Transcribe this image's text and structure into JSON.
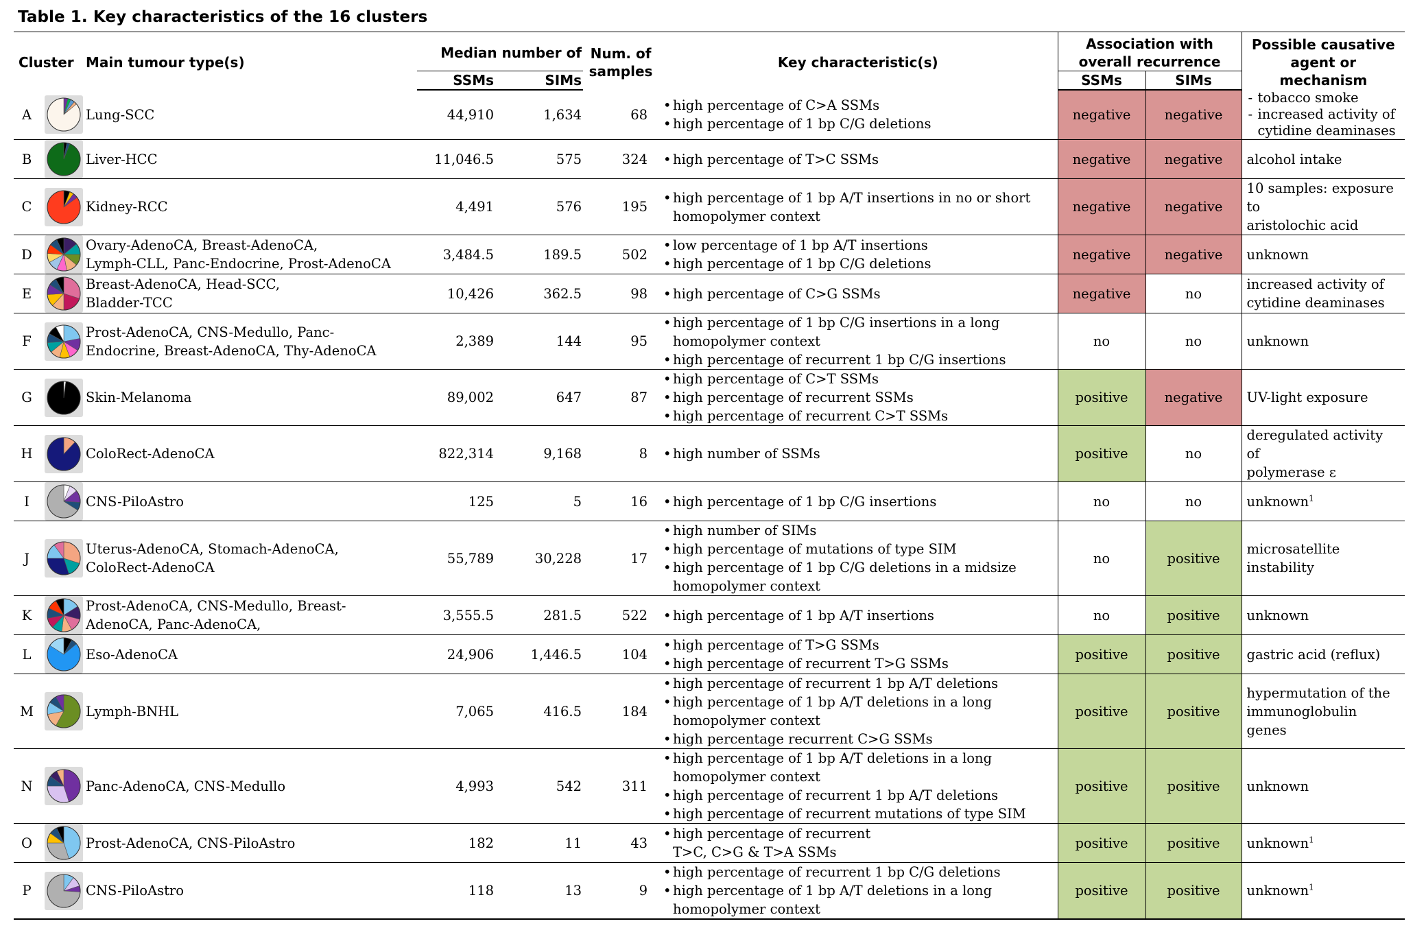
{
  "caption": "Table 1. Key characteristics of the 16 clusters",
  "headers": {
    "cluster": "Cluster",
    "tumour": "Main tumour type(s)",
    "median": "Median number of",
    "ssms": "SSMs",
    "sims": "SIMs",
    "samples_1": "Num. of",
    "samples_2": "samples",
    "key": "Key characteristic(s)",
    "assoc_1": "Association with",
    "assoc_2": "overall recurrence",
    "assoc_ssms": "SSMs",
    "assoc_sims": "SIMs",
    "agent_1": "Possible causative",
    "agent_2": "agent or mechanism"
  },
  "colors": {
    "negative_fill": "#d99594",
    "positive_fill": "#c4d79b",
    "pie_background": "#dcdcdc"
  },
  "rows": [
    {
      "label": "A",
      "tumour": [
        "Lung-SCC"
      ],
      "ssms": "44,910",
      "sims": "1,634",
      "samples": "68",
      "chars": [
        "high percentage of C>A SSMs",
        "high percentage of 1 bp C/G deletions"
      ],
      "assoc_ssms": "negative",
      "assoc_sims": "negative",
      "agent_dashes": [
        "tobacco smoke",
        "increased activity of cytidine deaminases"
      ],
      "pie": [
        {
          "v": 0.04,
          "c": "#7030a0"
        },
        {
          "v": 0.03,
          "c": "#00b050"
        },
        {
          "v": 0.04,
          "c": "#5b9bd5"
        },
        {
          "v": 0.03,
          "c": "#f4b183"
        },
        {
          "v": 0.86,
          "c": "#fcf5ec"
        }
      ]
    },
    {
      "label": "B",
      "tumour": [
        "Liver-HCC"
      ],
      "ssms": "11,046.5",
      "sims": "575",
      "samples": "324",
      "chars": [
        "high percentage of T>C SSMs"
      ],
      "assoc_ssms": "negative",
      "assoc_sims": "negative",
      "agent_lines": [
        "alcohol intake"
      ],
      "pie": [
        {
          "v": 0.03,
          "c": "#000000"
        },
        {
          "v": 0.03,
          "c": "#1f4e79"
        },
        {
          "v": 0.94,
          "c": "#0e6b19"
        }
      ]
    },
    {
      "label": "C",
      "tumour": [
        "Kidney-RCC"
      ],
      "ssms": "4,491",
      "sims": "576",
      "samples": "195",
      "chars": [
        "high percentage of 1 bp A/T insertions in no or short homopolymer context"
      ],
      "assoc_ssms": "negative",
      "assoc_sims": "negative",
      "agent_lines": [
        "10 samples: exposure to",
        "aristolochic acid"
      ],
      "pie": [
        {
          "v": 0.06,
          "c": "#000000"
        },
        {
          "v": 0.04,
          "c": "#ffc000"
        },
        {
          "v": 0.05,
          "c": "#7030a0"
        },
        {
          "v": 0.85,
          "c": "#ff3c1e"
        }
      ]
    },
    {
      "label": "D",
      "tumour": [
        "Ovary-AdenoCA, Breast-AdenoCA,",
        "Lymph-CLL, Panc-Endocrine, Prost-AdenoCA"
      ],
      "ssms": "3,484.5",
      "sims": "189.5",
      "samples": "502",
      "chars": [
        "low percentage of 1 bp A/T insertions",
        "high percentage of 1 bp C/G deletions"
      ],
      "assoc_ssms": "negative",
      "assoc_sims": "negative",
      "agent_lines": [
        "unknown"
      ],
      "pie": [
        {
          "v": 0.14,
          "c": "#3a1e64"
        },
        {
          "v": 0.11,
          "c": "#00a0a0"
        },
        {
          "v": 0.11,
          "c": "#6b8e23"
        },
        {
          "v": 0.11,
          "c": "#f4b183"
        },
        {
          "v": 0.1,
          "c": "#ff66cc"
        },
        {
          "v": 0.1,
          "c": "#9fc5e8"
        },
        {
          "v": 0.09,
          "c": "#ffd966"
        },
        {
          "v": 0.09,
          "c": "#ff3300"
        },
        {
          "v": 0.08,
          "c": "#1f4e79"
        },
        {
          "v": 0.07,
          "c": "#000000"
        }
      ]
    },
    {
      "label": "E",
      "tumour": [
        "Breast-AdenoCA, Head-SCC,",
        "Bladder-TCC"
      ],
      "ssms": "10,426",
      "sims": "362.5",
      "samples": "98",
      "chars": [
        "high percentage of C>G SSMs"
      ],
      "assoc_ssms": "negative",
      "assoc_sims": "no",
      "agent_lines": [
        "increased activity of",
        "cytidine deaminases"
      ],
      "pie": [
        {
          "v": 0.3,
          "c": "#e06e9b"
        },
        {
          "v": 0.2,
          "c": "#c2185b"
        },
        {
          "v": 0.12,
          "c": "#f4b183"
        },
        {
          "v": 0.12,
          "c": "#ffc000"
        },
        {
          "v": 0.1,
          "c": "#7030a0"
        },
        {
          "v": 0.08,
          "c": "#1f4e79"
        },
        {
          "v": 0.08,
          "c": "#000000"
        }
      ]
    },
    {
      "label": "F",
      "tumour": [
        "Prost-AdenoCA, CNS-Medullo, Panc-",
        "Endocrine, Breast-AdenoCA, Thy-AdenoCA"
      ],
      "ssms": "2,389",
      "sims": "144",
      "samples": "95",
      "chars": [
        "high percentage of 1 bp C/G insertions in a long homopolymer context",
        "high percentage of recurrent 1 bp C/G insertions"
      ],
      "assoc_ssms": "no",
      "assoc_sims": "no",
      "agent_lines": [
        "unknown"
      ],
      "pie": [
        {
          "v": 0.22,
          "c": "#7fc7f0"
        },
        {
          "v": 0.12,
          "c": "#7030a0"
        },
        {
          "v": 0.1,
          "c": "#ff66cc"
        },
        {
          "v": 0.1,
          "c": "#ffc000"
        },
        {
          "v": 0.1,
          "c": "#f4b183"
        },
        {
          "v": 0.1,
          "c": "#00a0a0"
        },
        {
          "v": 0.09,
          "c": "#1f4e79"
        },
        {
          "v": 0.09,
          "c": "#000000"
        },
        {
          "v": 0.08,
          "c": "#ffffff"
        }
      ]
    },
    {
      "label": "G",
      "tumour": [
        "Skin-Melanoma"
      ],
      "ssms": "89,002",
      "sims": "647",
      "samples": "87",
      "chars": [
        "high percentage of C>T SSMs",
        "high percentage of recurrent SSMs",
        "high percentage of recurrent C>T SSMs"
      ],
      "assoc_ssms": "positive",
      "assoc_sims": "negative",
      "agent_lines": [
        "UV-light exposure"
      ],
      "pie": [
        {
          "v": 0.02,
          "c": "#ffffff"
        },
        {
          "v": 0.98,
          "c": "#000000"
        }
      ]
    },
    {
      "label": "H",
      "tumour": [
        "ColoRect-AdenoCA"
      ],
      "ssms": "822,314",
      "sims": "9,168",
      "samples": "8",
      "chars": [
        "high number of SSMs"
      ],
      "assoc_ssms": "positive",
      "assoc_sims": "no",
      "agent_lines": [
        "deregulated activity of",
        "polymerase ε"
      ],
      "pie": [
        {
          "v": 0.12,
          "c": "#f4a582"
        },
        {
          "v": 0.88,
          "c": "#15197a"
        }
      ]
    },
    {
      "label": "I",
      "tumour": [
        "CNS-PiloAstro"
      ],
      "ssms": "125",
      "sims": "5",
      "samples": "16",
      "chars": [
        "high percentage of 1 bp C/G insertions"
      ],
      "assoc_ssms": "no",
      "assoc_sims": "no",
      "agent_lines": [
        "unknown"
      ],
      "agent_sup": "1",
      "pie": [
        {
          "v": 0.06,
          "c": "#ffffff"
        },
        {
          "v": 0.08,
          "c": "#e6d6f5"
        },
        {
          "v": 0.12,
          "c": "#7030a0"
        },
        {
          "v": 0.08,
          "c": "#1f4e79"
        },
        {
          "v": 0.66,
          "c": "#b0b0b0"
        }
      ]
    },
    {
      "label": "J",
      "tumour": [
        "Uterus-AdenoCA, Stomach-AdenoCA,",
        "ColoRect-AdenoCA"
      ],
      "ssms": "55,789",
      "sims": "30,228",
      "samples": "17",
      "chars": [
        "high number of SIMs",
        "high percentage of mutations of type SIM",
        "high percentage of 1 bp C/G deletions in a midsize homopolymer context"
      ],
      "assoc_ssms": "no",
      "assoc_sims": "positive",
      "agent_lines": [
        "microsatellite instability"
      ],
      "pie": [
        {
          "v": 0.3,
          "c": "#f4a582"
        },
        {
          "v": 0.15,
          "c": "#00a0a0"
        },
        {
          "v": 0.3,
          "c": "#15197a"
        },
        {
          "v": 0.15,
          "c": "#7fc7f0"
        },
        {
          "v": 0.1,
          "c": "#e06e9b"
        }
      ]
    },
    {
      "label": "K",
      "tumour": [
        "Prost-AdenoCA, CNS-Medullo, Breast-",
        "AdenoCA, Panc-AdenoCA,"
      ],
      "ssms": "3,555.5",
      "sims": "281.5",
      "samples": "522",
      "chars": [
        "high percentage of 1 bp A/T insertions"
      ],
      "assoc_ssms": "no",
      "assoc_sims": "positive",
      "agent_lines": [
        "unknown"
      ],
      "pie": [
        {
          "v": 0.16,
          "c": "#7fc7f0"
        },
        {
          "v": 0.13,
          "c": "#3a1e64"
        },
        {
          "v": 0.13,
          "c": "#e06e9b"
        },
        {
          "v": 0.1,
          "c": "#f4b183"
        },
        {
          "v": 0.1,
          "c": "#00a0a0"
        },
        {
          "v": 0.1,
          "c": "#c2185b"
        },
        {
          "v": 0.1,
          "c": "#1f4e79"
        },
        {
          "v": 0.1,
          "c": "#ff3300"
        },
        {
          "v": 0.08,
          "c": "#000000"
        }
      ]
    },
    {
      "label": "L",
      "tumour": [
        "Eso-AdenoCA"
      ],
      "ssms": "24,906",
      "sims": "1,446.5",
      "samples": "104",
      "chars": [
        "high percentage of T>G SSMs",
        "high percentage of recurrent T>G SSMs"
      ],
      "assoc_ssms": "positive",
      "assoc_sims": "positive",
      "agent_lines": [
        "gastric acid (reflux)"
      ],
      "pie": [
        {
          "v": 0.08,
          "c": "#000000"
        },
        {
          "v": 0.06,
          "c": "#1f4e79"
        },
        {
          "v": 0.7,
          "c": "#2196f3"
        },
        {
          "v": 0.16,
          "c": "#9fd8f5"
        }
      ]
    },
    {
      "label": "M",
      "tumour": [
        "Lymph-BNHL"
      ],
      "ssms": "7,065",
      "sims": "416.5",
      "samples": "184",
      "chars": [
        "high percentage of recurrent 1 bp A/T deletions",
        "high percentage of 1 bp A/T deletions in a long homopolymer context",
        "high percentage recurrent C>G SSMs"
      ],
      "assoc_ssms": "positive",
      "assoc_sims": "positive",
      "agent_lines": [
        "hypermutation of the",
        "immunoglobulin genes"
      ],
      "pie": [
        {
          "v": 0.58,
          "c": "#6b8e23"
        },
        {
          "v": 0.14,
          "c": "#f4b183"
        },
        {
          "v": 0.12,
          "c": "#7fc7f0"
        },
        {
          "v": 0.08,
          "c": "#1f4e79"
        },
        {
          "v": 0.08,
          "c": "#7030a0"
        }
      ]
    },
    {
      "label": "N",
      "tumour": [
        "Panc-AdenoCA, CNS-Medullo"
      ],
      "ssms": "4,993",
      "sims": "542",
      "samples": "311",
      "chars": [
        "high percentage of 1 bp A/T deletions in a long homopolymer context",
        "high percentage of recurrent 1 bp A/T deletions",
        "high percentage of recurrent mutations of type SIM"
      ],
      "assoc_ssms": "positive",
      "assoc_sims": "positive",
      "agent_lines": [
        "unknown"
      ],
      "pie": [
        {
          "v": 0.45,
          "c": "#7030a0"
        },
        {
          "v": 0.3,
          "c": "#d9c2f0"
        },
        {
          "v": 0.1,
          "c": "#1f4e79"
        },
        {
          "v": 0.08,
          "c": "#3a1e64"
        },
        {
          "v": 0.07,
          "c": "#f4b183"
        }
      ]
    },
    {
      "label": "O",
      "tumour": [
        "Prost-AdenoCA, CNS-PiloAstro"
      ],
      "ssms": "182",
      "sims": "11",
      "samples": "43",
      "chars": [
        "high percentage of recurrent",
        "T>C, C>G & T>A SSMs"
      ],
      "chars_joined": true,
      "assoc_ssms": "positive",
      "assoc_sims": "positive",
      "agent_lines": [
        "unknown"
      ],
      "agent_sup": "1",
      "pie": [
        {
          "v": 0.45,
          "c": "#7fc7f0"
        },
        {
          "v": 0.3,
          "c": "#b0b0b0"
        },
        {
          "v": 0.1,
          "c": "#ffc000"
        },
        {
          "v": 0.08,
          "c": "#1f4e79"
        },
        {
          "v": 0.07,
          "c": "#000000"
        }
      ]
    },
    {
      "label": "P",
      "tumour": [
        "CNS-PiloAstro"
      ],
      "ssms": "118",
      "sims": "13",
      "samples": "9",
      "chars": [
        "high percentage of recurrent 1 bp C/G deletions",
        "high percentage of 1 bp A/T deletions in a long homopolymer context"
      ],
      "assoc_ssms": "positive",
      "assoc_sims": "positive",
      "agent_lines": [
        "unknown"
      ],
      "agent_sup": "1",
      "pie": [
        {
          "v": 0.1,
          "c": "#7fc7f0"
        },
        {
          "v": 0.1,
          "c": "#d9c2f0"
        },
        {
          "v": 0.06,
          "c": "#7030a0"
        },
        {
          "v": 0.74,
          "c": "#b0b0b0"
        }
      ]
    }
  ]
}
